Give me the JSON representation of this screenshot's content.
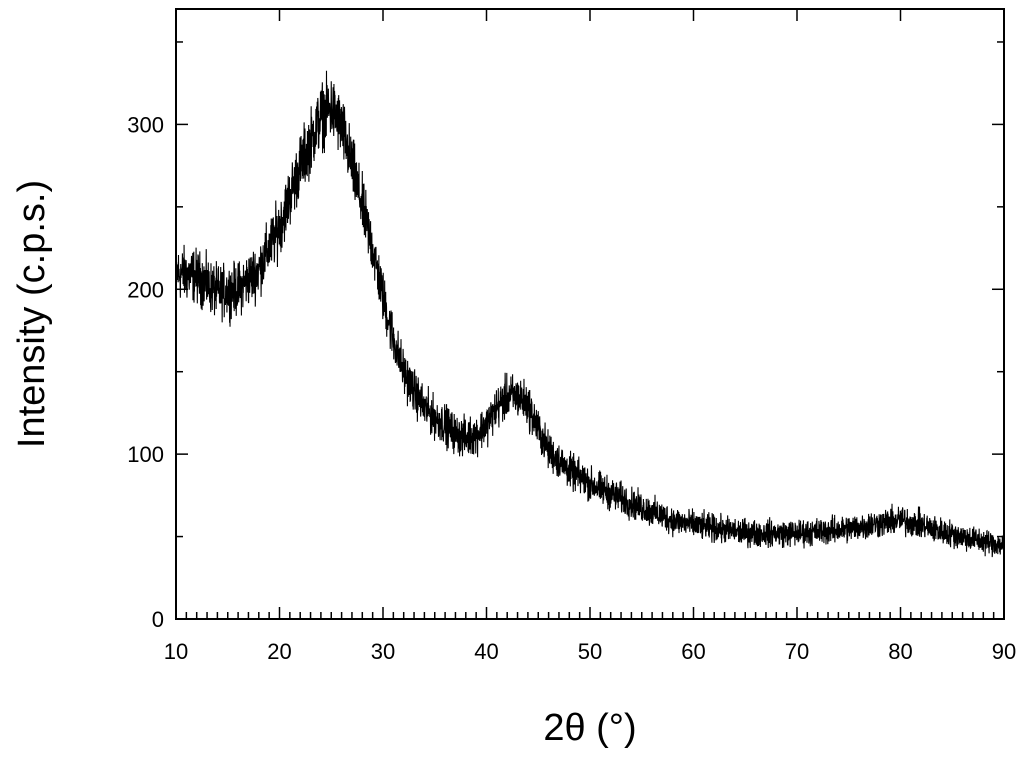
{
  "chart_data": {
    "type": "line",
    "title": "",
    "xlabel": "2θ (°)",
    "ylabel": "Intensity (c.p.s.)",
    "xlim": [
      10,
      90
    ],
    "ylim": [
      0,
      370
    ],
    "grid": false,
    "legend": "none",
    "line_color": "#000000",
    "x_tick_labels": [
      "10",
      "20",
      "30",
      "40",
      "50",
      "60",
      "70",
      "80",
      "90"
    ],
    "x_tick_values": [
      10,
      20,
      30,
      40,
      50,
      60,
      70,
      80,
      90
    ],
    "y_tick_labels": [
      "0",
      "100",
      "200",
      "300"
    ],
    "y_tick_values": [
      0,
      100,
      200,
      300
    ],
    "series": [
      {
        "x": [
          10,
          12,
          14,
          16,
          18,
          20,
          22,
          24,
          25,
          26,
          27,
          28,
          29,
          30,
          31,
          32,
          33,
          34,
          35,
          36,
          37,
          38,
          39,
          40,
          41,
          42,
          43,
          44,
          45,
          46,
          48,
          50,
          52,
          54,
          56,
          58,
          60,
          62,
          64,
          66,
          68,
          70,
          72,
          74,
          76,
          78,
          80,
          82,
          84,
          86,
          88,
          90
        ],
        "y": [
          210,
          208,
          198,
          200,
          212,
          238,
          275,
          305,
          310,
          298,
          275,
          250,
          225,
          195,
          170,
          150,
          138,
          128,
          122,
          118,
          112,
          110,
          112,
          118,
          128,
          135,
          135,
          130,
          115,
          102,
          90,
          82,
          76,
          70,
          65,
          60,
          57,
          55,
          53,
          52,
          52,
          52,
          53,
          54,
          56,
          58,
          60,
          57,
          53,
          50,
          47,
          45
        ],
        "noise_amplitude": 12
      }
    ]
  }
}
